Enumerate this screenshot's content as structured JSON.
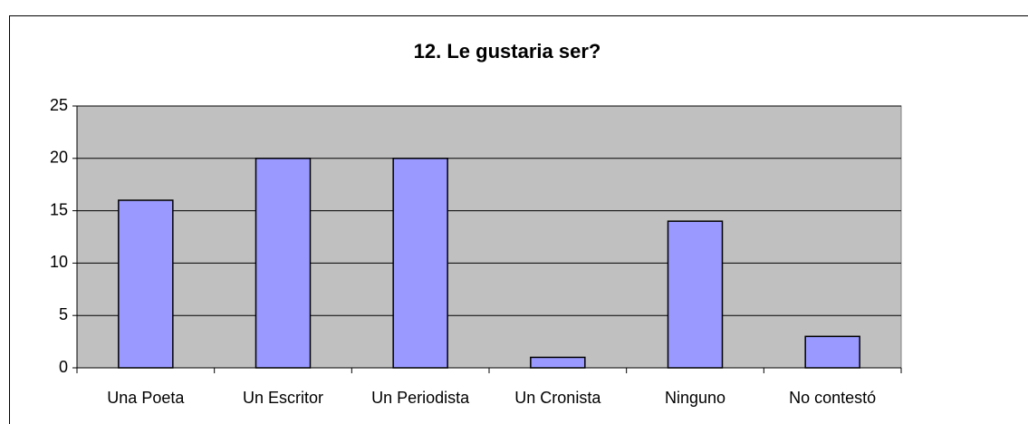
{
  "chart_data": {
    "type": "bar",
    "title": "12. Le gustaria ser?",
    "categories": [
      "Una Poeta",
      "Un Escritor",
      "Un Periodista",
      "Un Cronista",
      "Ninguno",
      "No contestó"
    ],
    "values": [
      16,
      20,
      20,
      1,
      14,
      3
    ],
    "color": "#9999ff",
    "ylim": [
      0,
      25
    ],
    "yticks": [
      0,
      5,
      10,
      15,
      20,
      25
    ],
    "grid": true
  }
}
